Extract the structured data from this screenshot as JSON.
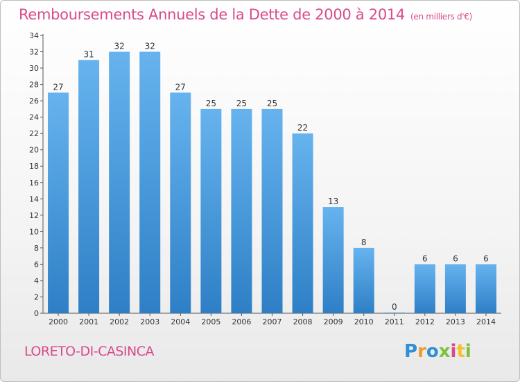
{
  "title": "Remboursements Annuels de la Dette de 2000 à 2014",
  "subtitle": "(en milliers d'€)",
  "place": "LORETO-DI-CASINCA",
  "logo": [
    "P",
    "r",
    "o",
    "x",
    "i",
    "t",
    "i"
  ],
  "colors": {
    "accent": "#d94a8c",
    "bar_top": "#66b3ee",
    "bar_bottom": "#2e7fc6"
  },
  "chart_data": {
    "type": "bar",
    "title": "Remboursements Annuels de la Dette de 2000 à 2014",
    "subtitle": "(en milliers d'€)",
    "categories": [
      "2000",
      "2001",
      "2002",
      "2003",
      "2004",
      "2005",
      "2006",
      "2007",
      "2008",
      "2009",
      "2010",
      "2011",
      "2012",
      "2013",
      "2014"
    ],
    "values": [
      27,
      31,
      32,
      32,
      27,
      25,
      25,
      25,
      22,
      13,
      8,
      0,
      6,
      6,
      6
    ],
    "xlabel": "",
    "ylabel": "",
    "ylim": [
      0,
      34
    ],
    "yticks": [
      0,
      2,
      4,
      6,
      8,
      10,
      12,
      14,
      16,
      18,
      20,
      22,
      24,
      26,
      28,
      30,
      32,
      34
    ],
    "grid": false,
    "data_labels": true
  }
}
